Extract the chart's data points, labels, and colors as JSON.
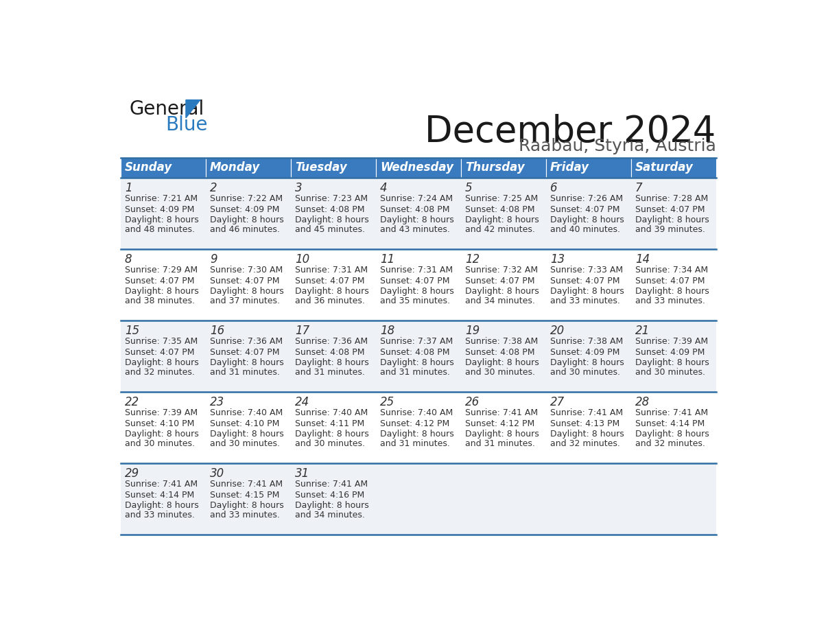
{
  "title": "December 2024",
  "subtitle": "Raabau, Styria, Austria",
  "header_bg": "#3a7abf",
  "header_text_color": "#ffffff",
  "cell_bg_light": "#eef2f7",
  "cell_bg_white": "#ffffff",
  "row_line_color": "#2e6da4",
  "days_of_week": [
    "Sunday",
    "Monday",
    "Tuesday",
    "Wednesday",
    "Thursday",
    "Friday",
    "Saturday"
  ],
  "weeks": [
    [
      {
        "day": 1,
        "sunrise": "7:21 AM",
        "sunset": "4:09 PM",
        "daylight_min": "48"
      },
      {
        "day": 2,
        "sunrise": "7:22 AM",
        "sunset": "4:09 PM",
        "daylight_min": "46"
      },
      {
        "day": 3,
        "sunrise": "7:23 AM",
        "sunset": "4:08 PM",
        "daylight_min": "45"
      },
      {
        "day": 4,
        "sunrise": "7:24 AM",
        "sunset": "4:08 PM",
        "daylight_min": "43"
      },
      {
        "day": 5,
        "sunrise": "7:25 AM",
        "sunset": "4:08 PM",
        "daylight_min": "42"
      },
      {
        "day": 6,
        "sunrise": "7:26 AM",
        "sunset": "4:07 PM",
        "daylight_min": "40"
      },
      {
        "day": 7,
        "sunrise": "7:28 AM",
        "sunset": "4:07 PM",
        "daylight_min": "39"
      }
    ],
    [
      {
        "day": 8,
        "sunrise": "7:29 AM",
        "sunset": "4:07 PM",
        "daylight_min": "38"
      },
      {
        "day": 9,
        "sunrise": "7:30 AM",
        "sunset": "4:07 PM",
        "daylight_min": "37"
      },
      {
        "day": 10,
        "sunrise": "7:31 AM",
        "sunset": "4:07 PM",
        "daylight_min": "36"
      },
      {
        "day": 11,
        "sunrise": "7:31 AM",
        "sunset": "4:07 PM",
        "daylight_min": "35"
      },
      {
        "day": 12,
        "sunrise": "7:32 AM",
        "sunset": "4:07 PM",
        "daylight_min": "34"
      },
      {
        "day": 13,
        "sunrise": "7:33 AM",
        "sunset": "4:07 PM",
        "daylight_min": "33"
      },
      {
        "day": 14,
        "sunrise": "7:34 AM",
        "sunset": "4:07 PM",
        "daylight_min": "33"
      }
    ],
    [
      {
        "day": 15,
        "sunrise": "7:35 AM",
        "sunset": "4:07 PM",
        "daylight_min": "32"
      },
      {
        "day": 16,
        "sunrise": "7:36 AM",
        "sunset": "4:07 PM",
        "daylight_min": "31"
      },
      {
        "day": 17,
        "sunrise": "7:36 AM",
        "sunset": "4:08 PM",
        "daylight_min": "31"
      },
      {
        "day": 18,
        "sunrise": "7:37 AM",
        "sunset": "4:08 PM",
        "daylight_min": "31"
      },
      {
        "day": 19,
        "sunrise": "7:38 AM",
        "sunset": "4:08 PM",
        "daylight_min": "30"
      },
      {
        "day": 20,
        "sunrise": "7:38 AM",
        "sunset": "4:09 PM",
        "daylight_min": "30"
      },
      {
        "day": 21,
        "sunrise": "7:39 AM",
        "sunset": "4:09 PM",
        "daylight_min": "30"
      }
    ],
    [
      {
        "day": 22,
        "sunrise": "7:39 AM",
        "sunset": "4:10 PM",
        "daylight_min": "30"
      },
      {
        "day": 23,
        "sunrise": "7:40 AM",
        "sunset": "4:10 PM",
        "daylight_min": "30"
      },
      {
        "day": 24,
        "sunrise": "7:40 AM",
        "sunset": "4:11 PM",
        "daylight_min": "30"
      },
      {
        "day": 25,
        "sunrise": "7:40 AM",
        "sunset": "4:12 PM",
        "daylight_min": "31"
      },
      {
        "day": 26,
        "sunrise": "7:41 AM",
        "sunset": "4:12 PM",
        "daylight_min": "31"
      },
      {
        "day": 27,
        "sunrise": "7:41 AM",
        "sunset": "4:13 PM",
        "daylight_min": "32"
      },
      {
        "day": 28,
        "sunrise": "7:41 AM",
        "sunset": "4:14 PM",
        "daylight_min": "32"
      }
    ],
    [
      {
        "day": 29,
        "sunrise": "7:41 AM",
        "sunset": "4:14 PM",
        "daylight_min": "33"
      },
      {
        "day": 30,
        "sunrise": "7:41 AM",
        "sunset": "4:15 PM",
        "daylight_min": "33"
      },
      {
        "day": 31,
        "sunrise": "7:41 AM",
        "sunset": "4:16 PM",
        "daylight_min": "34"
      },
      null,
      null,
      null,
      null
    ]
  ],
  "logo_general_color": "#1a1a1a",
  "logo_blue_color": "#2a7abf",
  "logo_triangle_color": "#2a7abf"
}
